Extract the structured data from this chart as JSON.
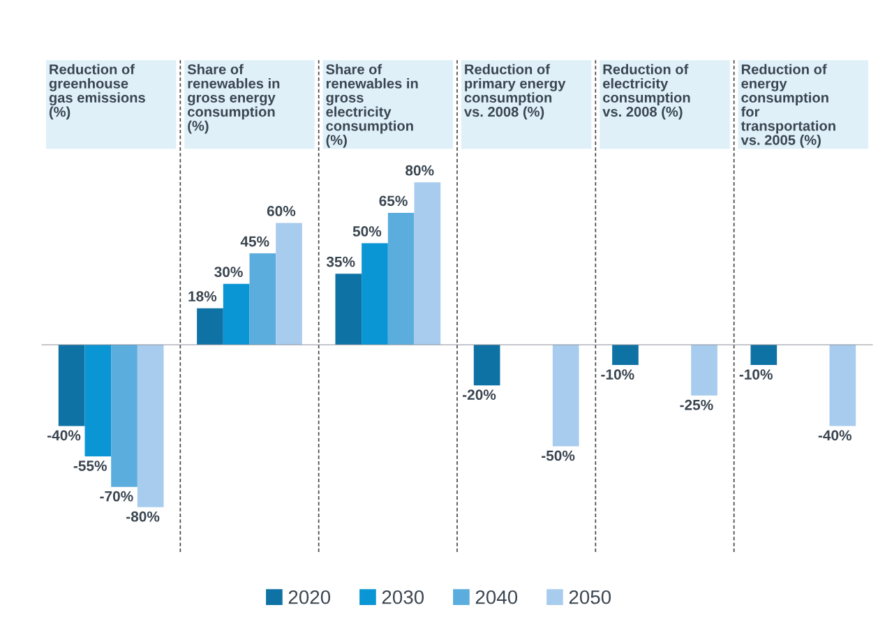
{
  "chart_data": {
    "type": "bar",
    "categories": [
      "Reduction of\ngreenhouse\ngas emissions\n(%)",
      "Share of\nrenewables in\ngross energy\nconsumption\n(%)",
      "Share of\nrenewables in\ngross\nelectricity\nconsumption\n(%)",
      "Reduction of\nprimary energy\nconsumption\nvs. 2008 (%)",
      "Reduction of\nelectricity\nconsumption\nvs. 2008 (%)",
      "Reduction of\nenergy\nconsumption\nfor\ntransportation\nvs. 2005 (%)"
    ],
    "series": [
      {
        "name": "2020",
        "color": "#0f72a5",
        "values": [
          -40,
          18,
          35,
          -20,
          -10,
          -10
        ],
        "value_labels": [
          "-40%",
          "18%",
          "35%",
          "-20%",
          "-10%",
          "-10%"
        ]
      },
      {
        "name": "2030",
        "color": "#0a95d4",
        "values": [
          -55,
          30,
          50,
          null,
          null,
          null
        ],
        "value_labels": [
          "-55%",
          "30%",
          "50%",
          null,
          null,
          null
        ]
      },
      {
        "name": "2040",
        "color": "#5badde",
        "values": [
          -70,
          45,
          65,
          null,
          null,
          null
        ],
        "value_labels": [
          "-70%",
          "45%",
          "65%",
          null,
          null,
          null
        ]
      },
      {
        "name": "2050",
        "color": "#a8ccee",
        "values": [
          -80,
          60,
          80,
          -50,
          -25,
          -40
        ],
        "value_labels": [
          "-80%",
          "60%",
          "80%",
          "-50%",
          "-25%",
          "-40%"
        ]
      }
    ],
    "legend": "bottom"
  }
}
